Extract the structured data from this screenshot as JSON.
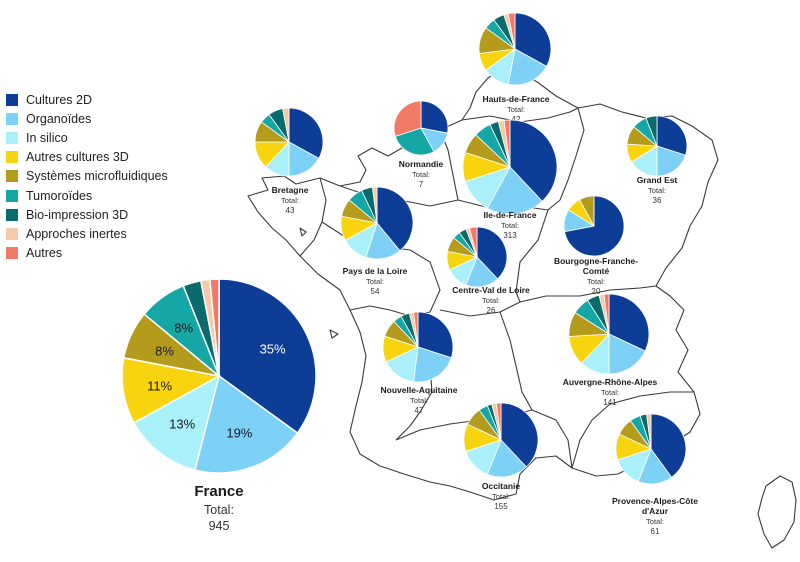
{
  "colors": [
    "#0d3d97",
    "#7dd1f7",
    "#a9f0fb",
    "#f7d40d",
    "#b49b1c",
    "#14a7a5",
    "#0b6a6b",
    "#f7c9a8",
    "#f17a67"
  ],
  "legend": {
    "items": [
      "Cultures 2D",
      "Organoïdes",
      "In silico",
      "Autres cultures 3D",
      "Systèmes microfluidiques",
      "Tumoroïdes",
      "Bio-impression 3D",
      "Approches inertes",
      "Autres"
    ]
  },
  "total_label": "Total:",
  "chart_data": {
    "type": "pie",
    "series_order": [
      "Cultures 2D",
      "Organoïdes",
      "In silico",
      "Autres cultures 3D",
      "Systèmes microfluidiques",
      "Tumoroïdes",
      "Bio-impression 3D",
      "Approches inertes",
      "Autres"
    ],
    "national": {
      "name": "France",
      "total": "945",
      "values": [
        35,
        19,
        13,
        11,
        8,
        8,
        3,
        1.5,
        1.5
      ],
      "value_labels": [
        "35%",
        "19%",
        "13%",
        "11%",
        "8%",
        "8%",
        "",
        "",
        ""
      ]
    },
    "regions": [
      {
        "name": "Hauts-de-France",
        "total": "42",
        "values": [
          33,
          20,
          12,
          8,
          12,
          5,
          5,
          2,
          3
        ]
      },
      {
        "name": "Normandie",
        "total": "7",
        "values": [
          28,
          14,
          0,
          0,
          0,
          28,
          0,
          0,
          30
        ]
      },
      {
        "name": "Bretagne",
        "total": "43",
        "values": [
          33,
          17,
          12,
          13,
          10,
          5,
          7,
          3,
          0
        ]
      },
      {
        "name": "Ile-de-France",
        "total": "313",
        "values": [
          38,
          20,
          12,
          10,
          7,
          6,
          3,
          2,
          2
        ]
      },
      {
        "name": "Grand Est",
        "total": "36",
        "values": [
          30,
          20,
          16,
          10,
          10,
          8,
          6,
          0,
          0
        ]
      },
      {
        "name": "Pays de la Loire",
        "total": "54",
        "values": [
          39,
          16,
          12,
          11,
          8,
          7,
          5,
          2,
          0
        ]
      },
      {
        "name": "Centre-Val de Loire",
        "total": "26",
        "values": [
          38,
          18,
          12,
          10,
          8,
          4,
          4,
          2,
          4
        ]
      },
      {
        "name": "Bourgogne-Franche-Comté",
        "total": "20",
        "values": [
          72,
          12,
          0,
          8,
          8,
          0,
          0,
          0,
          0
        ]
      },
      {
        "name": "Nouvelle-Aquitaine",
        "total": "47",
        "values": [
          30,
          22,
          16,
          12,
          8,
          4,
          4,
          2,
          2
        ]
      },
      {
        "name": "Auvergne-Rhône-Alpes",
        "total": "141",
        "values": [
          32,
          18,
          12,
          12,
          10,
          7,
          5,
          2,
          2
        ]
      },
      {
        "name": "Occitanie",
        "total": "155",
        "values": [
          38,
          18,
          14,
          12,
          8,
          4,
          2,
          2,
          2
        ]
      },
      {
        "name": "Provence-Alpes-Côte d'Azur",
        "total": "61",
        "values": [
          40,
          16,
          14,
          12,
          8,
          5,
          3,
          2,
          0
        ]
      }
    ]
  }
}
